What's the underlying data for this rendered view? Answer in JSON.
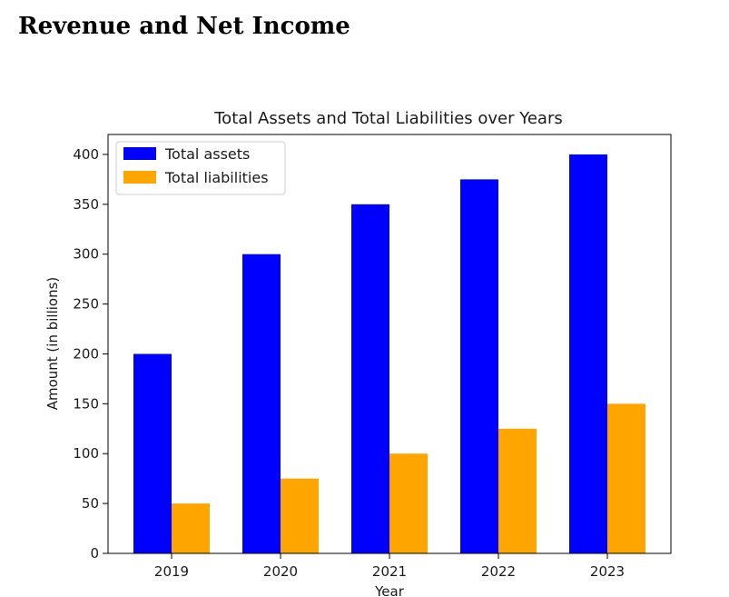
{
  "page": {
    "heading": "Revenue and Net Income"
  },
  "colors": {
    "total_assets": "#0000ff",
    "total_liabilities": "#ffa500"
  },
  "chart_data": {
    "type": "bar",
    "title": "Total Assets and Total Liabilities over Years",
    "xlabel": "Year",
    "ylabel": "Amount (in billions)",
    "categories": [
      "2019",
      "2020",
      "2021",
      "2022",
      "2023"
    ],
    "series": [
      {
        "name": "Total assets",
        "values": [
          200,
          300,
          350,
          375,
          400
        ]
      },
      {
        "name": "Total liabilities",
        "values": [
          50,
          75,
          100,
          125,
          150
        ]
      }
    ],
    "ylim": [
      0,
      420
    ],
    "yticks": [
      0,
      50,
      100,
      150,
      200,
      250,
      300,
      350,
      400
    ],
    "grid": false,
    "legend_position": "top-left"
  }
}
